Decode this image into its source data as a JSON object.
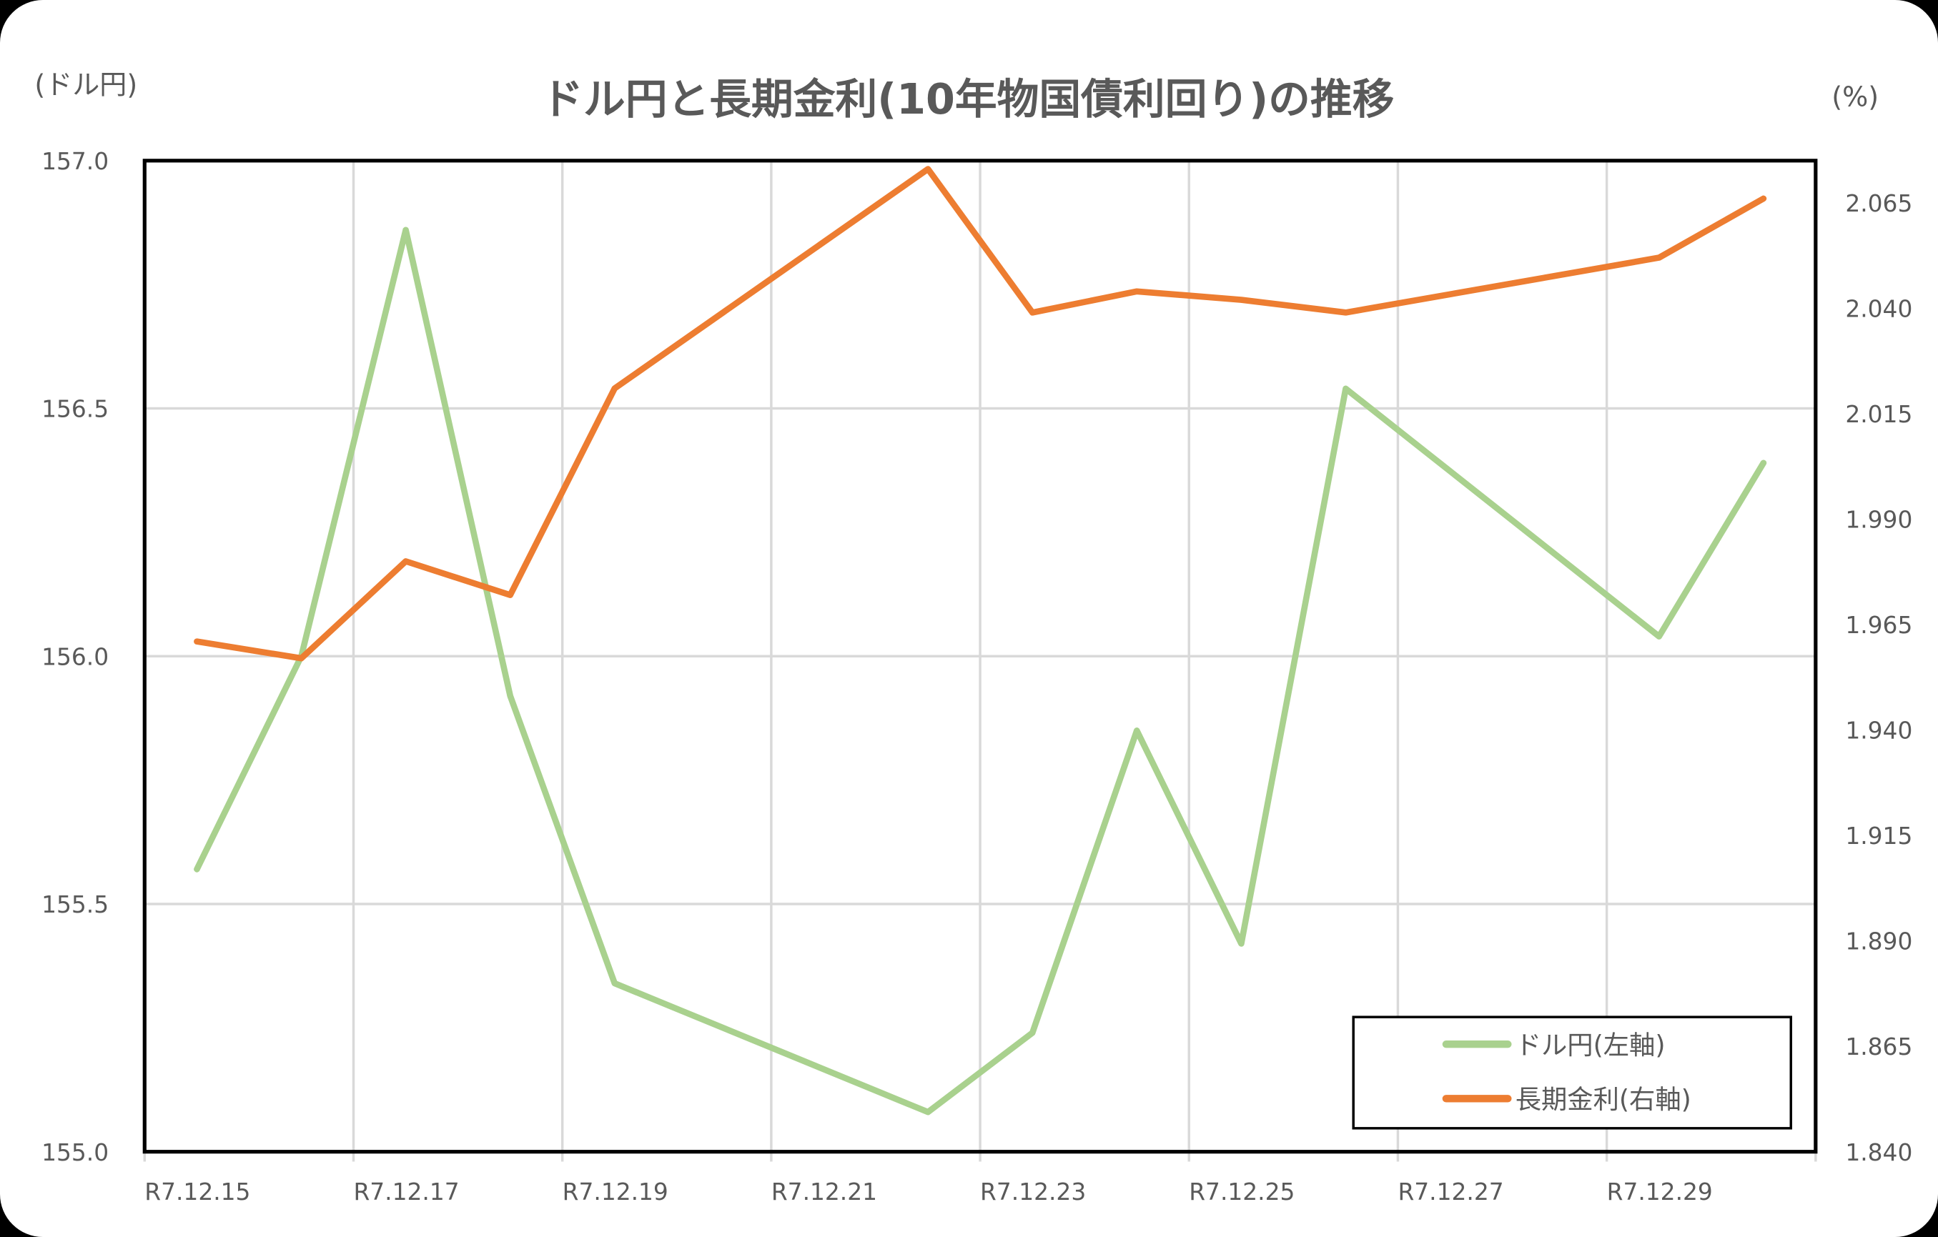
{
  "chart": {
    "title": "ドル円と長期金利(10年物国債利回り)の推移",
    "left_unit": "(ドル円)",
    "right_unit": "(%)",
    "legend": [
      "ドル円(左軸)",
      "長期金利(右軸)"
    ],
    "colors": {
      "usdjpy": "#A9D18E",
      "jgb10y": "#ED7D31",
      "grid": "#D9D9D9",
      "text": "#595959"
    }
  },
  "chart_data": {
    "type": "line",
    "title": "ドル円と長期金利(10年物国債利回り)の推移",
    "xlabel": "",
    "ylabel": "(ドル円)",
    "y2label": "(%)",
    "x": [
      "R7.12.15",
      "R7.12.16",
      "R7.12.17",
      "R7.12.18",
      "R7.12.19",
      "R7.12.22",
      "R7.12.23",
      "R7.12.24",
      "R7.12.25",
      "R7.12.26",
      "R7.12.29",
      "R7.12.30"
    ],
    "x_tick_labels": [
      "R7.12.15",
      "R7.12.17",
      "R7.12.19",
      "R7.12.21",
      "R7.12.23",
      "R7.12.25",
      "R7.12.27",
      "R7.12.29"
    ],
    "series": [
      {
        "name": "ドル円(左軸)",
        "axis": "left",
        "color": "#A9D18E",
        "values": [
          155.57,
          156.0,
          156.86,
          155.92,
          155.34,
          155.08,
          155.24,
          155.85,
          155.42,
          156.54,
          156.04,
          156.39
        ]
      },
      {
        "name": "長期金利(右軸)",
        "axis": "right",
        "color": "#ED7D31",
        "values": [
          1.961,
          1.957,
          1.98,
          1.972,
          2.021,
          2.073,
          2.039,
          2.044,
          2.042,
          2.039,
          2.052,
          2.066
        ]
      }
    ],
    "ylim": [
      155.0,
      157.0
    ],
    "y_ticks": [
      "155.0",
      "155.5",
      "156.0",
      "156.5",
      "157.0"
    ],
    "y2lim": [
      1.84,
      2.075
    ],
    "y2_ticks": [
      "1.840",
      "1.865",
      "1.890",
      "1.915",
      "1.940",
      "1.965",
      "1.990",
      "2.015",
      "2.040",
      "2.065"
    ],
    "grid": true,
    "legend_position": "lower right inside"
  }
}
